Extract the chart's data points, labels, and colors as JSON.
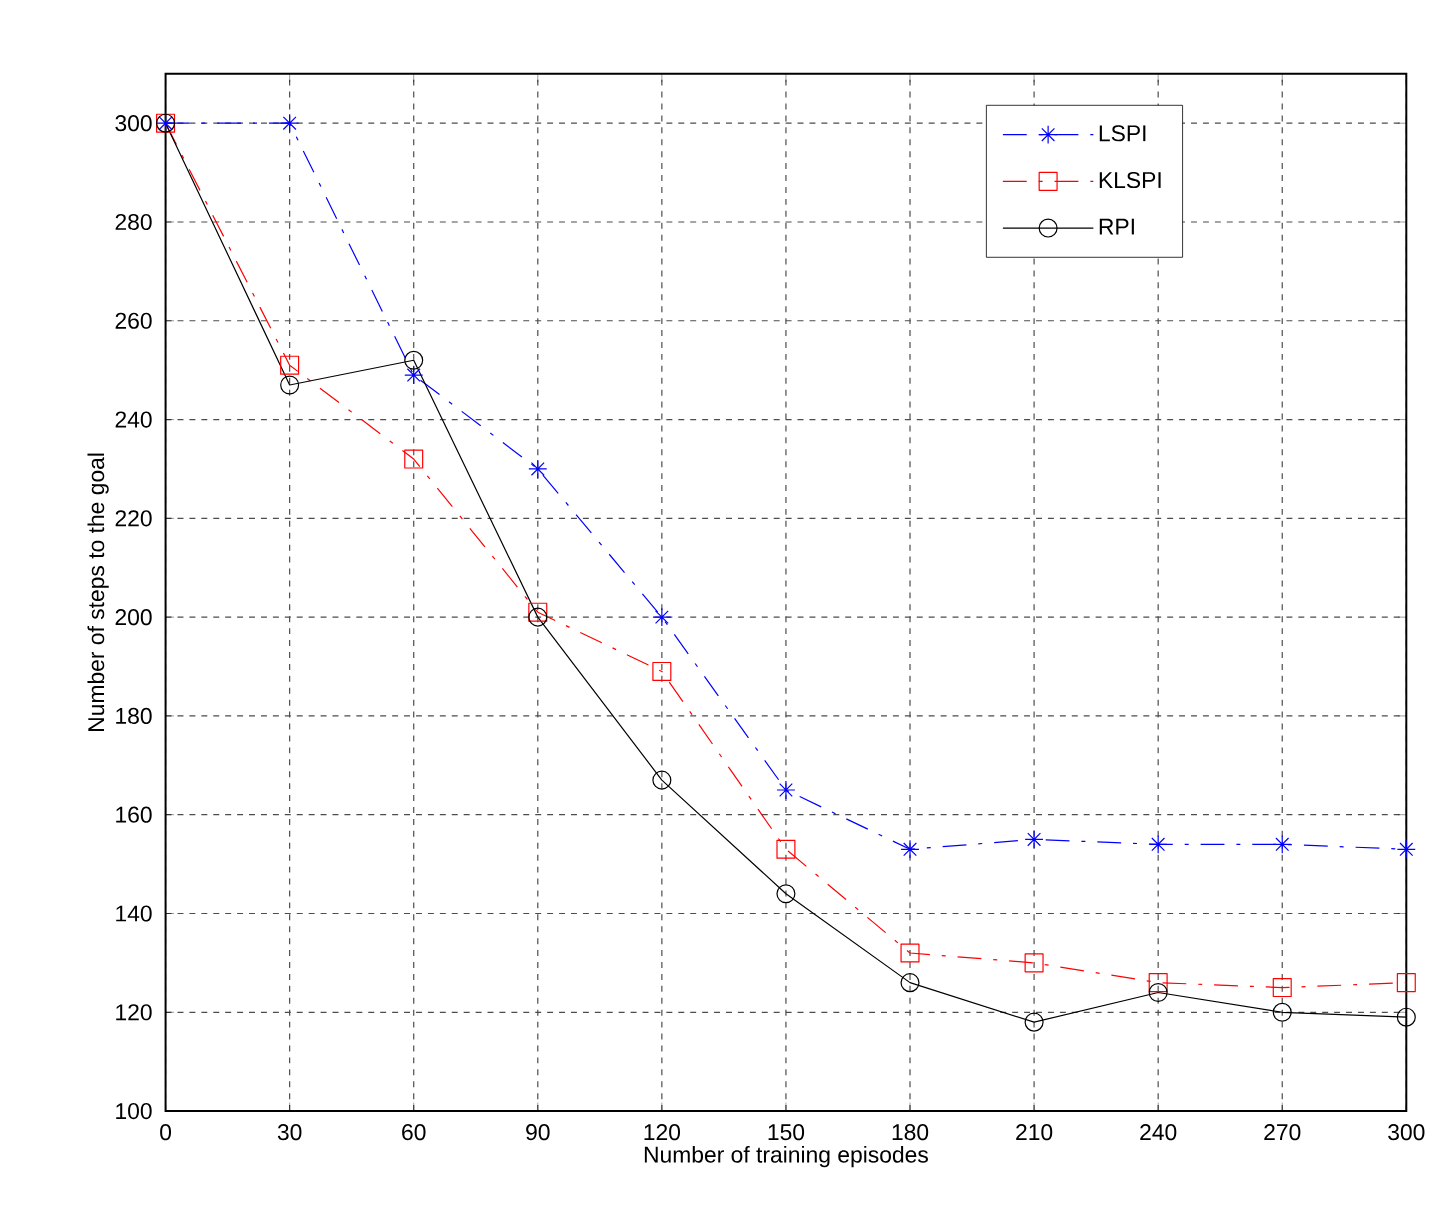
{
  "chart_data": {
    "type": "line",
    "xlabel": "Number of training episodes",
    "ylabel": "Number of steps to the goal",
    "x": [
      0,
      30,
      60,
      90,
      120,
      150,
      180,
      210,
      240,
      270,
      300
    ],
    "xlim": [
      0,
      300
    ],
    "xticks": [
      0,
      30,
      60,
      90,
      120,
      150,
      180,
      210,
      240,
      270,
      300
    ],
    "ylim": [
      100,
      310
    ],
    "yticks": [
      100,
      120,
      140,
      160,
      180,
      200,
      220,
      240,
      260,
      280,
      300
    ],
    "grid": true,
    "legend": "top right",
    "series": [
      {
        "name": "LSPI",
        "color": "#0000ff",
        "marker": "cross",
        "line_style": "dashed",
        "values": [
          300,
          300,
          249,
          230,
          200,
          165,
          153,
          155,
          154,
          154,
          153
        ]
      },
      {
        "name": "KLSPI",
        "color": "#ff0000",
        "marker": "square",
        "line_style": "dashed",
        "values": [
          300,
          251,
          232,
          201,
          189,
          153,
          132,
          130,
          126,
          125,
          126
        ]
      },
      {
        "name": "RPI",
        "color": "#000000",
        "marker": "circle",
        "line_style": "solid",
        "values": [
          300,
          247,
          252,
          200,
          167,
          144,
          126,
          118,
          124,
          120,
          119
        ]
      }
    ]
  }
}
